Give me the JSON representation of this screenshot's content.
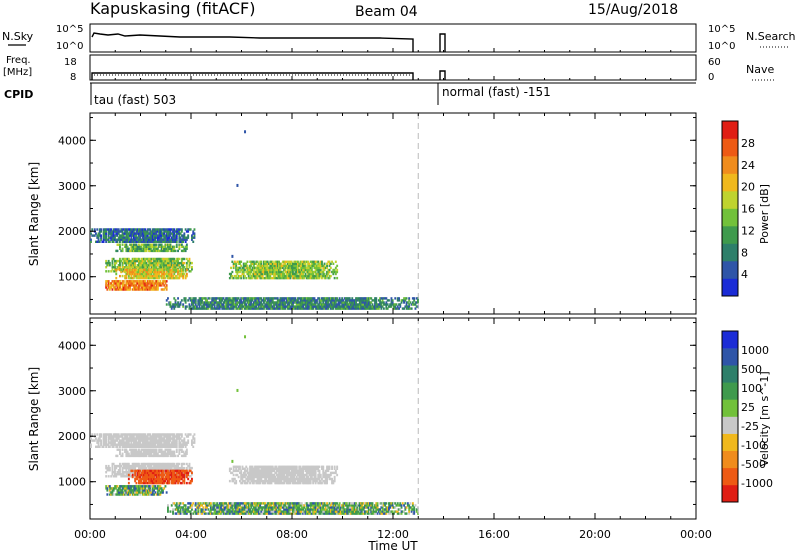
{
  "header": {
    "station": "Kapuskasing (fitACF)",
    "beam": "Beam 04",
    "date": "15/Aug/2018"
  },
  "summary_panels": {
    "nsky_label": "N.Sky",
    "freq_label_1": "Freq.",
    "freq_label_2": "[MHz]",
    "cpid_label": "CPID",
    "nsearch_label": "N.Search",
    "nave_label": "Nave",
    "nsky_ticks": [
      "10^5",
      "10^0"
    ],
    "nsearch_ticks": [
      "10^5",
      "10^0"
    ],
    "freq_ticks": [
      "18",
      "8"
    ],
    "nave_ticks": [
      "60",
      "0"
    ],
    "cpid_1": "tau (fast) 503",
    "cpid_2": "normal (fast) -151"
  },
  "colors": {
    "power_scale": [
      "#1b2cd6",
      "#2f55a8",
      "#2e7f6a",
      "#3f9a4d",
      "#72c13a",
      "#bfd32f",
      "#f0b81c",
      "#f08c1c",
      "#ee5a14",
      "#e01e14"
    ],
    "velocity_scale": [
      "#1b2cd6",
      "#2f55a8",
      "#2e7f6a",
      "#3f9a4d",
      "#72c13a",
      "#c8c8c8",
      "#f0b81c",
      "#f08c1c",
      "#ee5a14",
      "#e01e14"
    ]
  },
  "chart_data": [
    {
      "type": "heatmap",
      "title": "",
      "xlabel": "",
      "ylabel": "Slant Range [km]",
      "xlim": [
        0,
        24
      ],
      "ylim": [
        180,
        4600
      ],
      "yticks": [
        "1000",
        "2000",
        "3000",
        "4000"
      ],
      "colorbar_label": "Power [dB]",
      "colorbar_ticks": [
        "4",
        "8",
        "12",
        "16",
        "20",
        "24",
        "28"
      ],
      "series": [
        {
          "name": "",
          "t_start": 0.0,
          "t_end": 4.1,
          "r_min": 1750,
          "r_max": 2050,
          "level": 8
        },
        {
          "name": "",
          "t_start": 1.0,
          "t_end": 3.8,
          "r_min": 1550,
          "r_max": 1700,
          "level": 14
        },
        {
          "name": "",
          "t_start": 0.6,
          "t_end": 4.0,
          "r_min": 1100,
          "r_max": 1400,
          "level": 16
        },
        {
          "name": "",
          "t_start": 1.0,
          "t_end": 3.8,
          "r_min": 950,
          "r_max": 1150,
          "level": 20
        },
        {
          "name": "",
          "t_start": 0.6,
          "t_end": 3.0,
          "r_min": 700,
          "r_max": 900,
          "level": 25
        },
        {
          "name": "",
          "t_start": 5.5,
          "t_end": 9.8,
          "r_min": 950,
          "r_max": 1350,
          "level": 16
        },
        {
          "name": "",
          "t_start": 3.0,
          "t_end": 13.0,
          "r_min": 280,
          "r_max": 520,
          "level": 10
        }
      ]
    },
    {
      "type": "heatmap",
      "title": "",
      "xlabel": "Time UT",
      "ylabel": "Slant Range [km]",
      "xlim": [
        0,
        24
      ],
      "ylim": [
        180,
        4600
      ],
      "xticks": [
        "00:00",
        "04:00",
        "08:00",
        "12:00",
        "16:00",
        "20:00",
        "00:00"
      ],
      "yticks": [
        "1000",
        "2000",
        "3000",
        "4000"
      ],
      "colorbar_label": "Velocity [m s^-1]",
      "colorbar_ticks": [
        "1000",
        "500",
        "100",
        "25",
        "-25",
        "-100",
        "-500",
        "-1000"
      ],
      "series": [
        {
          "name": "",
          "t_start": 0.0,
          "t_end": 4.1,
          "r_min": 1750,
          "r_max": 2050,
          "level": 0
        },
        {
          "name": "",
          "t_start": 1.0,
          "t_end": 3.8,
          "r_min": 1550,
          "r_max": 1700,
          "level": 0
        },
        {
          "name": "",
          "t_start": 0.6,
          "t_end": 4.0,
          "r_min": 1100,
          "r_max": 1400,
          "level": 0
        },
        {
          "name": "",
          "t_start": 1.5,
          "t_end": 4.0,
          "r_min": 950,
          "r_max": 1250,
          "level": -400
        },
        {
          "name": "",
          "t_start": 0.6,
          "t_end": 3.0,
          "r_min": 700,
          "r_max": 900,
          "level": 150
        },
        {
          "name": "",
          "t_start": 5.5,
          "t_end": 9.8,
          "r_min": 950,
          "r_max": 1350,
          "level": 0
        },
        {
          "name": "",
          "t_start": 3.0,
          "t_end": 13.0,
          "r_min": 280,
          "r_max": 520,
          "level": 150
        }
      ]
    }
  ]
}
